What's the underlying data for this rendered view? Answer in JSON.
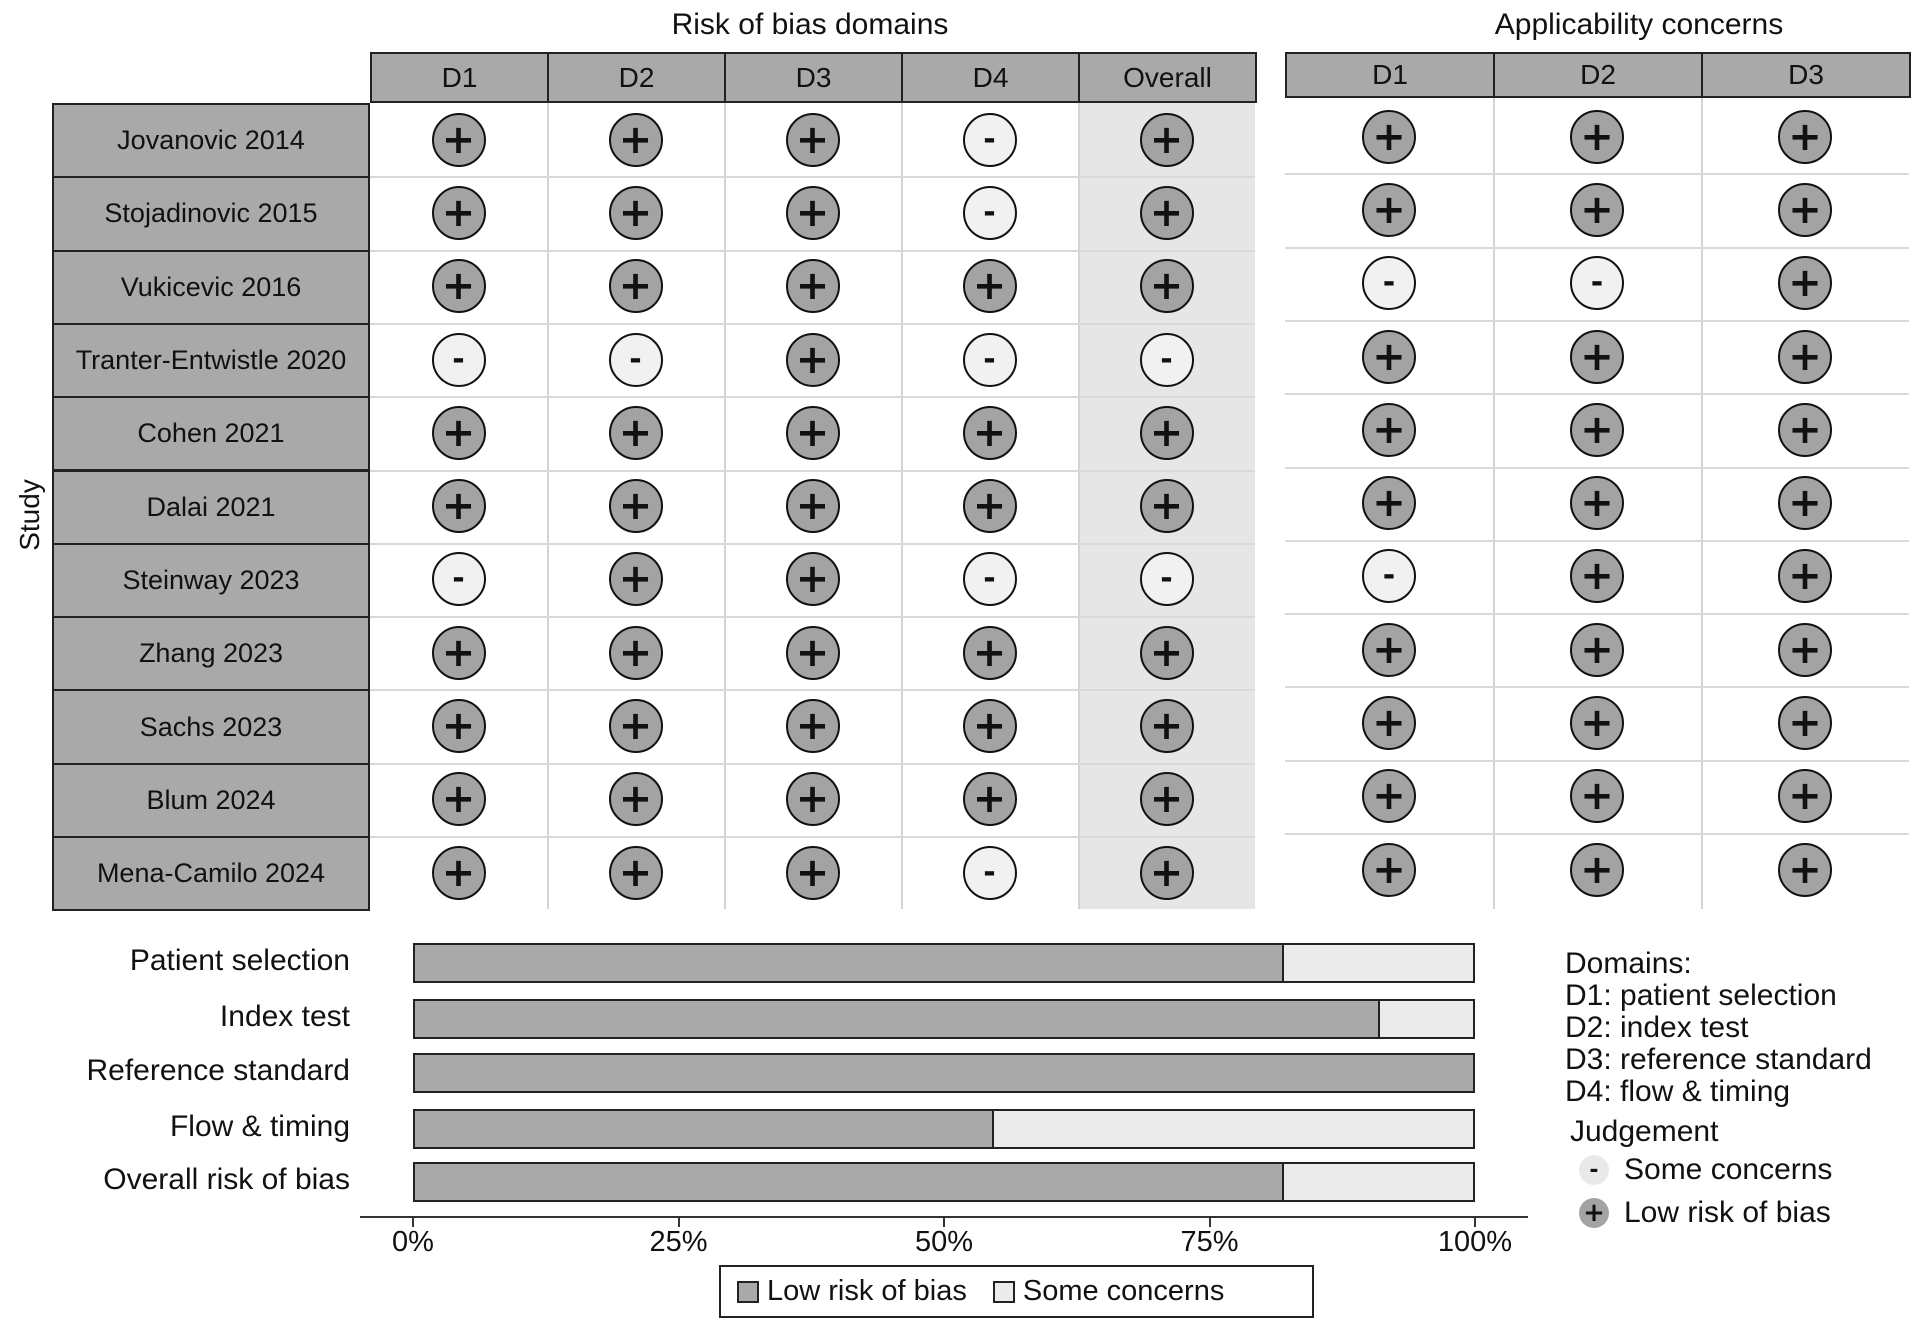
{
  "rob_title": "Risk of bias domains",
  "app_title": "Applicability concerns",
  "study_axis_label": "Study",
  "rob_headers": [
    "D1",
    "D2",
    "D3",
    "D4",
    "Overall"
  ],
  "app_headers": [
    "D1",
    "D2",
    "D3"
  ],
  "symbols": {
    "low": "+",
    "some": "-"
  },
  "colors": {
    "low": "#a3a3a3",
    "some": "#f1f1f1",
    "header": "#a9a9a9",
    "overall_column": "#e6e6e6"
  },
  "studies": [
    {
      "name": "Jovanovic 2014",
      "rob": [
        "low",
        "low",
        "low",
        "some",
        "low"
      ],
      "app": [
        "low",
        "low",
        "low"
      ]
    },
    {
      "name": "Stojadinovic 2015",
      "rob": [
        "low",
        "low",
        "low",
        "some",
        "low"
      ],
      "app": [
        "low",
        "low",
        "low"
      ]
    },
    {
      "name": "Vukicevic 2016",
      "rob": [
        "low",
        "low",
        "low",
        "low",
        "low"
      ],
      "app": [
        "some",
        "some",
        "low"
      ]
    },
    {
      "name": "Tranter-Entwistle 2020",
      "rob": [
        "some",
        "some",
        "low",
        "some",
        "some"
      ],
      "app": [
        "low",
        "low",
        "low"
      ]
    },
    {
      "name": "Cohen 2021",
      "rob": [
        "low",
        "low",
        "low",
        "low",
        "low"
      ],
      "app": [
        "low",
        "low",
        "low"
      ]
    },
    {
      "name": "Dalai 2021",
      "rob": [
        "low",
        "low",
        "low",
        "low",
        "low"
      ],
      "app": [
        "low",
        "low",
        "low"
      ]
    },
    {
      "name": "Steinway 2023",
      "rob": [
        "some",
        "low",
        "low",
        "some",
        "some"
      ],
      "app": [
        "some",
        "low",
        "low"
      ]
    },
    {
      "name": "Zhang 2023",
      "rob": [
        "low",
        "low",
        "low",
        "low",
        "low"
      ],
      "app": [
        "low",
        "low",
        "low"
      ]
    },
    {
      "name": "Sachs 2023",
      "rob": [
        "low",
        "low",
        "low",
        "low",
        "low"
      ],
      "app": [
        "low",
        "low",
        "low"
      ]
    },
    {
      "name": "Blum 2024",
      "rob": [
        "low",
        "low",
        "low",
        "low",
        "low"
      ],
      "app": [
        "low",
        "low",
        "low"
      ]
    },
    {
      "name": "Mena-Camilo 2024",
      "rob": [
        "low",
        "low",
        "low",
        "some",
        "low"
      ],
      "app": [
        "low",
        "low",
        "low"
      ]
    }
  ],
  "chart_data": {
    "type": "bar",
    "orientation": "horizontal",
    "stacked": true,
    "categories": [
      "Patient selection",
      "Index test",
      "Reference standard",
      "Flow & timing",
      "Overall risk of bias"
    ],
    "series": [
      {
        "name": "Low risk of bias",
        "values": [
          81.8,
          90.9,
          100,
          54.5,
          81.8
        ]
      },
      {
        "name": "Some concerns",
        "values": [
          18.2,
          9.1,
          0,
          45.5,
          18.2
        ]
      }
    ],
    "xlim": [
      0,
      100
    ],
    "x_ticks": [
      "0%",
      "25%",
      "50%",
      "75%",
      "100%"
    ],
    "legend_position": "bottom"
  },
  "key": {
    "domains_title": "Domains:",
    "domains": [
      "D1: patient selection",
      "D2: index test",
      "D3: reference standard",
      "D4: flow & timing"
    ],
    "judgement_title": "Judgement",
    "judgements": [
      {
        "symbol": "-",
        "label": "Some concerns",
        "level": "some"
      },
      {
        "symbol": "+",
        "label": "Low risk of bias",
        "level": "low"
      }
    ]
  }
}
